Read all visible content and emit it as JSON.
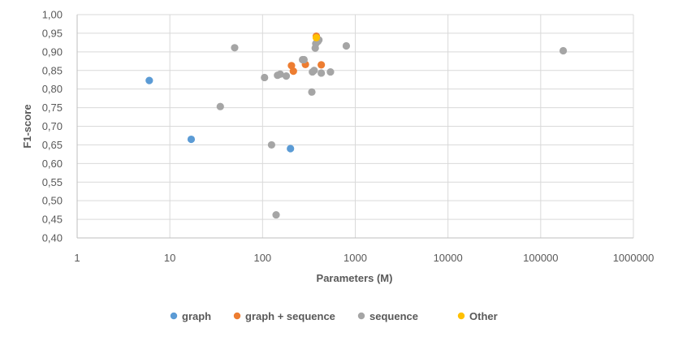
{
  "chart_data": {
    "type": "scatter",
    "title": "",
    "xlabel": "Parameters (M)",
    "ylabel": "F1-score",
    "x_scale": "log",
    "xlim": [
      1,
      1000000
    ],
    "ylim": [
      0.4,
      1.0
    ],
    "grid": true,
    "legend_position": "bottom",
    "x_tick_labels": [
      "1",
      "10",
      "100",
      "1000",
      "10000",
      "100000",
      "1000000"
    ],
    "y_tick_labels": [
      "0,40",
      "0,45",
      "0,50",
      "0,55",
      "0,60",
      "0,65",
      "0,70",
      "0,75",
      "0,80",
      "0,85",
      "0,90",
      "0,95",
      "1,00"
    ],
    "series": [
      {
        "name": "graph",
        "color": "#5B9BD5",
        "points": [
          {
            "x": 6,
            "y": 0.823
          },
          {
            "x": 17,
            "y": 0.665
          },
          {
            "x": 200,
            "y": 0.64
          }
        ]
      },
      {
        "name": "graph + sequence",
        "color": "#ED7D31",
        "points": [
          {
            "x": 205,
            "y": 0.863
          },
          {
            "x": 215,
            "y": 0.848
          },
          {
            "x": 290,
            "y": 0.866
          },
          {
            "x": 380,
            "y": 0.942
          },
          {
            "x": 430,
            "y": 0.865
          }
        ]
      },
      {
        "name": "sequence",
        "color": "#A5A5A5",
        "points": [
          {
            "x": 35,
            "y": 0.753
          },
          {
            "x": 50,
            "y": 0.911
          },
          {
            "x": 105,
            "y": 0.831
          },
          {
            "x": 125,
            "y": 0.65
          },
          {
            "x": 140,
            "y": 0.462
          },
          {
            "x": 145,
            "y": 0.837
          },
          {
            "x": 155,
            "y": 0.84
          },
          {
            "x": 180,
            "y": 0.835
          },
          {
            "x": 270,
            "y": 0.879
          },
          {
            "x": 280,
            "y": 0.879
          },
          {
            "x": 340,
            "y": 0.792
          },
          {
            "x": 345,
            "y": 0.846
          },
          {
            "x": 360,
            "y": 0.85
          },
          {
            "x": 370,
            "y": 0.91
          },
          {
            "x": 375,
            "y": 0.922
          },
          {
            "x": 395,
            "y": 0.928
          },
          {
            "x": 405,
            "y": 0.932
          },
          {
            "x": 430,
            "y": 0.843
          },
          {
            "x": 540,
            "y": 0.846
          },
          {
            "x": 800,
            "y": 0.916
          },
          {
            "x": 175000,
            "y": 0.903
          }
        ]
      },
      {
        "name": "Other",
        "color": "#FFC000",
        "points": [
          {
            "x": 380,
            "y": 0.938
          }
        ]
      }
    ]
  }
}
